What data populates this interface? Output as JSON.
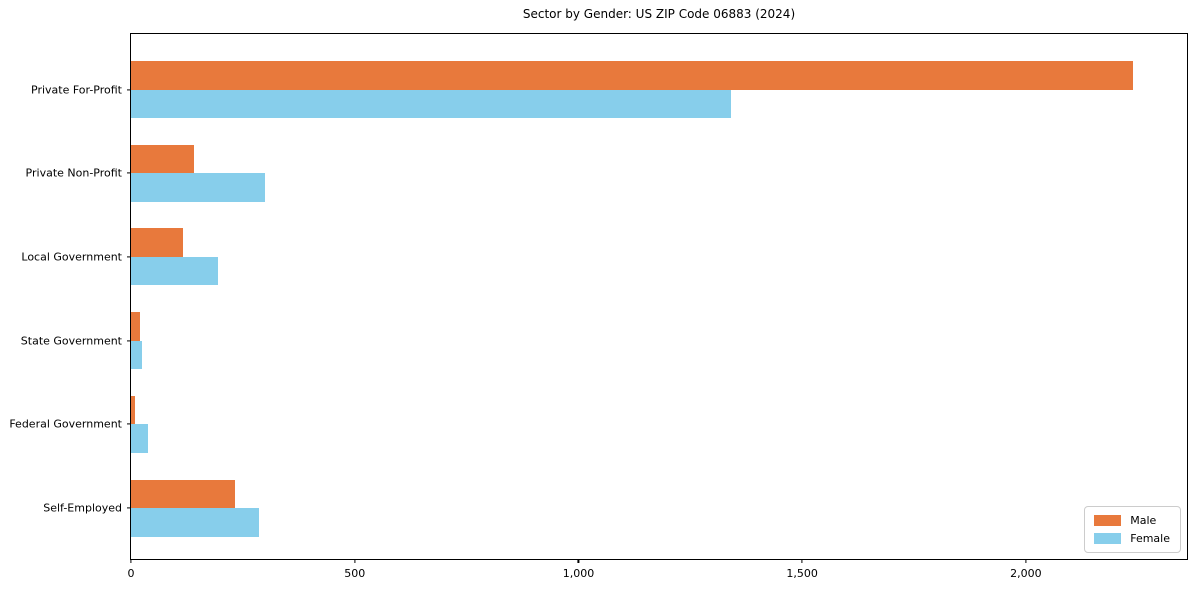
{
  "title": "Sector by Gender: US ZIP Code 06883 (2024)",
  "colors": {
    "male": "#e8793c",
    "female": "#87ceeb",
    "spine": "#000000",
    "legend_border": "#cccccc",
    "background": "#ffffff"
  },
  "legend": {
    "position": "lower right",
    "items": [
      "Male",
      "Female"
    ]
  },
  "chart_data": {
    "type": "bar",
    "orientation": "horizontal",
    "title": "Sector by Gender: US ZIP Code 06883 (2024)",
    "categories": [
      "Private For-Profit",
      "Private Non-Profit",
      "Local Government",
      "State Government",
      "Federal Government",
      "Self-Employed"
    ],
    "series": [
      {
        "name": "Male",
        "color": "#e8793c",
        "values": [
          2240,
          140,
          117,
          20,
          10,
          232
        ]
      },
      {
        "name": "Female",
        "color": "#87ceeb",
        "values": [
          1340,
          300,
          195,
          25,
          37,
          287
        ]
      }
    ],
    "xlim": [
      0,
      2360
    ],
    "xticks": [
      0,
      500,
      1000,
      1500,
      2000
    ],
    "xtick_labels": [
      "0",
      "500",
      "1,000",
      "1,500",
      "2,000"
    ],
    "xlabel": "",
    "ylabel": "",
    "grid": false,
    "legend_position": "lower right"
  }
}
